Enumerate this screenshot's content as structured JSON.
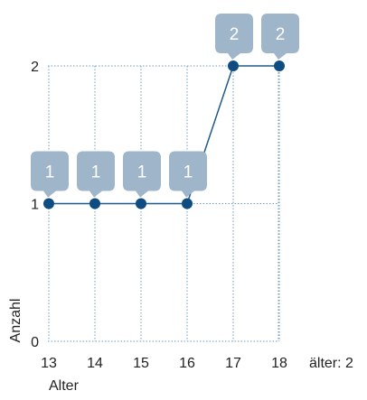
{
  "chart_data": {
    "type": "line",
    "x": [
      13,
      14,
      15,
      16,
      17,
      18
    ],
    "values": [
      1,
      1,
      1,
      1,
      2,
      2
    ],
    "data_labels": [
      "1",
      "1",
      "1",
      "1",
      "2",
      "2"
    ],
    "xlabel": "Alter",
    "ylabel": "Anzahl",
    "x_ticks": [
      "13",
      "14",
      "15",
      "16",
      "17",
      "18"
    ],
    "y_ticks": [
      "0",
      "1",
      "2"
    ],
    "ylim": [
      0,
      2
    ],
    "grid": true,
    "annotation": "älter: 2",
    "colors": {
      "line": "#1f5a8a",
      "marker": "#0f4c81",
      "label_box": "#9fb6ca",
      "label_text": "#ffffff",
      "grid": "#6f9ec3",
      "axis_text": "#222222"
    }
  }
}
